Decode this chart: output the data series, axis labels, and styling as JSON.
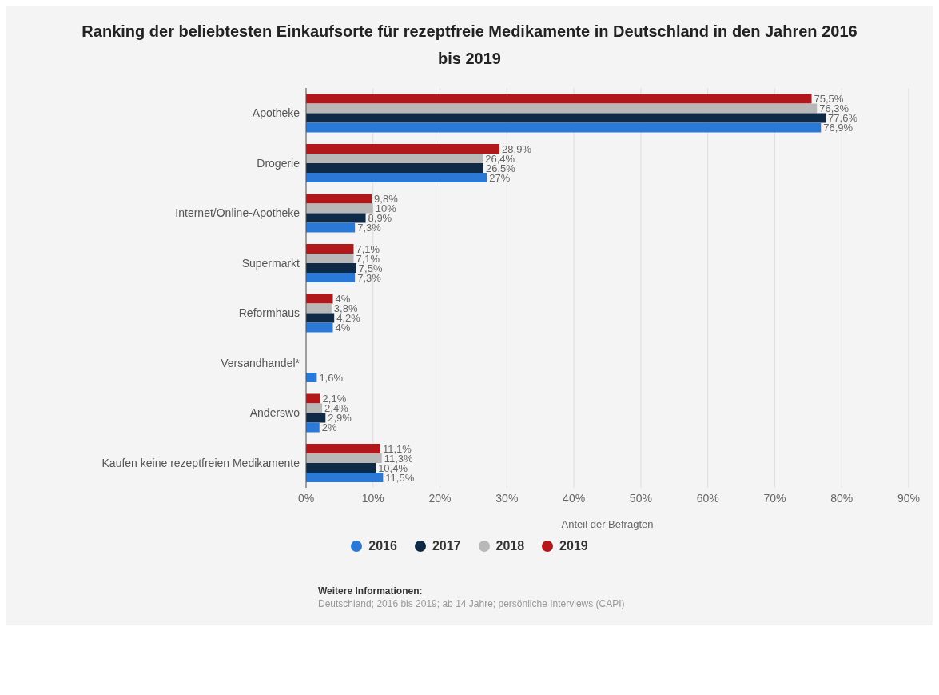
{
  "chart_data": {
    "type": "bar",
    "orientation": "horizontal",
    "title": "Ranking der beliebtesten Einkaufsorte für rezeptfreie Medikamente in Deutschland in den Jahren 2016 bis 2019",
    "xlabel": "Anteil der Befragten",
    "categories": [
      "Apotheke",
      "Drogerie",
      "Internet/Online-Apotheke",
      "Supermarkt",
      "Reformhaus",
      "Versandhandel*",
      "Anderswo",
      "Kaufen keine rezeptfreien Medikamente"
    ],
    "series": [
      {
        "name": "2016",
        "color": "#2b79d6",
        "values": [
          76.9,
          27,
          7.3,
          7.3,
          4,
          1.6,
          2,
          11.5
        ],
        "value_labels": [
          "76,9%",
          "27%",
          "7,3%",
          "7,3%",
          "4%",
          "1,6%",
          "2%",
          "11,5%"
        ]
      },
      {
        "name": "2017",
        "color": "#0e2a47",
        "values": [
          77.6,
          26.5,
          8.9,
          7.5,
          4.2,
          null,
          2.9,
          10.4
        ],
        "value_labels": [
          "77,6%",
          "26,5%",
          "8,9%",
          "7,5%",
          "4,2%",
          null,
          "2,9%",
          "10,4%"
        ]
      },
      {
        "name": "2018",
        "color": "#b8b8b8",
        "values": [
          76.3,
          26.4,
          10,
          7.1,
          3.8,
          null,
          2.4,
          11.3
        ],
        "value_labels": [
          "76,3%",
          "26,4%",
          "10%",
          "7,1%",
          "3,8%",
          null,
          "2,4%",
          "11,3%"
        ]
      },
      {
        "name": "2019",
        "color": "#b2171c",
        "values": [
          75.5,
          28.9,
          9.8,
          7.1,
          4,
          null,
          2.1,
          11.1
        ],
        "value_labels": [
          "75,5%",
          "28,9%",
          "9,8%",
          "7,1%",
          "4%",
          null,
          "2,1%",
          "11,1%"
        ]
      }
    ],
    "xlim": [
      0,
      90
    ],
    "xticks": [
      {
        "value": 0,
        "label": "0%"
      },
      {
        "value": 10,
        "label": "10%"
      },
      {
        "value": 20,
        "label": "20%"
      },
      {
        "value": 30,
        "label": "30%"
      },
      {
        "value": 40,
        "label": "40%"
      },
      {
        "value": 50,
        "label": "50%"
      },
      {
        "value": 60,
        "label": "60%"
      },
      {
        "value": 70,
        "label": "70%"
      },
      {
        "value": 80,
        "label": "80%"
      },
      {
        "value": 90,
        "label": "90%"
      }
    ],
    "grid": "x",
    "legend": "bottom",
    "annotations": [
      "Weitere Informationen:",
      "Deutschland; 2016 bis 2019; ab 14 Jahre; persönliche Interviews (CAPI)"
    ]
  }
}
